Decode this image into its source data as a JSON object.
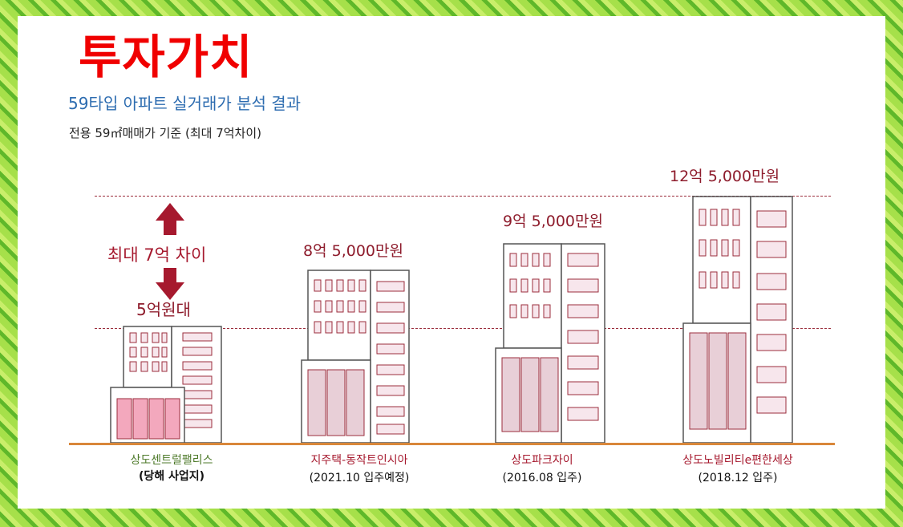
{
  "title": "투자가치",
  "subtitle": "59타입 아파트 실거래가 분석 결과",
  "note": "전용 59㎡매매가 기준 (최대 7억차이)",
  "gap_label": "최대 7억 차이",
  "low_label": "5억원대",
  "colors": {
    "title": "#f00000",
    "subtitle": "#2d6cb0",
    "price": "#8e1c2c",
    "dashed_line": "#9b2d3c",
    "ground": "#d9873a",
    "building_outline": "#555555",
    "lower_block_target": "#f3a8bd",
    "lower_block_other": "#e8cfd7"
  },
  "buildings": [
    {
      "name": "상도센트럴팰리스",
      "detail": "(당해 사업지)",
      "price": "",
      "price_eok": 5,
      "is_target": true
    },
    {
      "name": "지주택-동작트인시아",
      "detail": "(2021.10 입주예정)",
      "price": "8억 5,000만원",
      "price_eok": 8.5,
      "is_target": false
    },
    {
      "name": "상도파크자이",
      "detail": "(2016.08 입주)",
      "price": "9억 5,000만원",
      "price_eok": 9.5,
      "is_target": false
    },
    {
      "name": "상도노빌리티e편한세상",
      "detail": "(2018.12 입주)",
      "price": "12억 5,000만원",
      "price_eok": 12.5,
      "is_target": false
    }
  ]
}
